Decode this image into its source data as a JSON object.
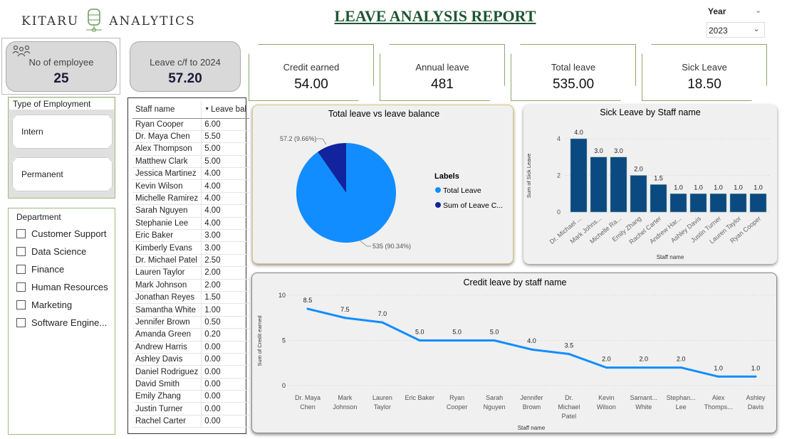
{
  "header": {
    "brand_left": "KITARU",
    "brand_right": "ANALYTICS",
    "title": "LEAVE ANALYSIS REPORT",
    "year_label": "Year",
    "year_value": "2023"
  },
  "kpis": {
    "employees": {
      "label": "No of employee",
      "value": "25",
      "icon": "people-icon"
    },
    "carry": {
      "label": "Leave c/f to 2024",
      "value": "57.20"
    }
  },
  "cards": [
    {
      "label": "Credit earned",
      "value": "54.00"
    },
    {
      "label": "Annual leave",
      "value": "481"
    },
    {
      "label": "Total leave",
      "value": "535.00"
    },
    {
      "label": "Sick Leave",
      "value": "18.50"
    }
  ],
  "employment": {
    "title": "Type of Employment",
    "options": [
      "Intern",
      "Permanent"
    ]
  },
  "department": {
    "title": "Department",
    "options": [
      "Customer Support",
      "Data Science",
      "Finance",
      "Human Resources",
      "Marketing",
      "Software Engine..."
    ]
  },
  "staff_table": {
    "headers": [
      "Staff name",
      "Leave bal"
    ],
    "rows": [
      [
        "Ryan Cooper",
        "6.00"
      ],
      [
        "Dr. Maya Chen",
        "5.50"
      ],
      [
        "Alex Thompson",
        "5.00"
      ],
      [
        "Matthew Clark",
        "5.00"
      ],
      [
        "Jessica Martinez",
        "4.00"
      ],
      [
        "Kevin Wilson",
        "4.00"
      ],
      [
        "Michelle Ramirez",
        "4.00"
      ],
      [
        "Sarah Nguyen",
        "4.00"
      ],
      [
        "Stephanie Lee",
        "4.00"
      ],
      [
        "Eric Baker",
        "3.00"
      ],
      [
        "Kimberly Evans",
        "3.00"
      ],
      [
        "Dr. Michael Patel",
        "2.50"
      ],
      [
        "Lauren Taylor",
        "2.00"
      ],
      [
        "Mark Johnson",
        "2.00"
      ],
      [
        "Jonathan Reyes",
        "1.50"
      ],
      [
        "Samantha White",
        "1.00"
      ],
      [
        "Jennifer Brown",
        "0.50"
      ],
      [
        "Amanda Green",
        "0.20"
      ],
      [
        "Andrew Harris",
        "0.00"
      ],
      [
        "Ashley Davis",
        "0.00"
      ],
      [
        "Daniel Rodriguez",
        "0.00"
      ],
      [
        "David Smith",
        "0.00"
      ],
      [
        "Emily Zhang",
        "0.00"
      ],
      [
        "Justin Turner",
        "0.00"
      ],
      [
        "Rachel Carter",
        "0.00"
      ]
    ]
  },
  "chart_data": [
    {
      "type": "pie",
      "title": "Total leave vs leave balance",
      "legend_title": "Labels",
      "legend_position": "right",
      "slices": [
        {
          "name": "Total Leave",
          "value": 535,
          "label": "535 (90.34%)",
          "color": "#118dff"
        },
        {
          "name": "Sum of Leave C...",
          "value": 57.2,
          "label": "57.2 (9.66%)",
          "color": "#12239e"
        }
      ]
    },
    {
      "type": "bar",
      "title": "Sick Leave by Staff name",
      "xlabel": "Staff name",
      "ylabel": "Sum of Sick Leave",
      "ylim": [
        0,
        4
      ],
      "yticks": [
        "0",
        "2",
        "4"
      ],
      "color": "#0a4a80",
      "categories": [
        "Dr. Michael ...",
        "Mark Johns...",
        "Michelle Ra...",
        "Emily Zhang",
        "Rachel Carter",
        "Andrew Har...",
        "Ashley Davis",
        "Justin Turner",
        "Lauren Taylor",
        "Ryan Cooper"
      ],
      "values": [
        4.0,
        3.0,
        3.0,
        2.0,
        1.5,
        1.0,
        1.0,
        1.0,
        1.0,
        1.0
      ],
      "labels": [
        "4.0",
        "3.0",
        "3.0",
        "2.0",
        "1.5",
        "1.0",
        "1.0",
        "1.0",
        "1.0",
        "1.0"
      ]
    },
    {
      "type": "line",
      "title": "Credit leave by staff name",
      "xlabel": "Staff name",
      "ylabel": "Sum of Credit earned",
      "ylim": [
        0,
        10
      ],
      "yticks": [
        "0",
        "5",
        "10"
      ],
      "color": "#118dff",
      "categories": [
        "Dr. Maya Chen",
        "Mark Johnson",
        "Lauren Taylor",
        "Eric Baker",
        "Ryan Cooper",
        "Sarah Nguyen",
        "Jennifer Brown",
        "Dr. Michael Patel",
        "Kevin Wilson",
        "Samant... White",
        "Stephan... Lee",
        "Alex Thomps...",
        "Ashley Davis"
      ],
      "values": [
        8.5,
        7.5,
        7.0,
        5.0,
        5.0,
        5.0,
        4.0,
        3.5,
        2.0,
        2.0,
        2.0,
        1.0,
        1.0
      ],
      "labels": [
        "8.5",
        "7.5",
        "7.0",
        "5.0",
        "5.0",
        "5.0",
        "4.0",
        "3.5",
        "2.0",
        "2.0",
        "2.0",
        "1.0",
        "1.0"
      ]
    }
  ]
}
